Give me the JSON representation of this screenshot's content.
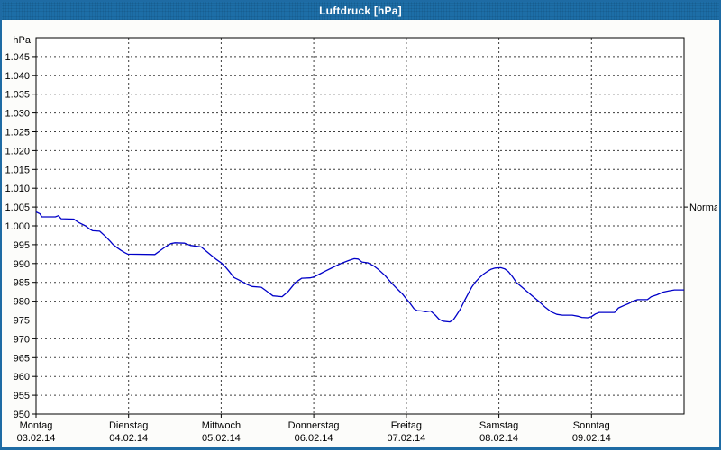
{
  "window": {
    "title": "Luftdruck [hPa]"
  },
  "chart_data": {
    "type": "line",
    "title": "Luftdruck [hPa]",
    "grid": true,
    "x_axis": {
      "unit": "hours_from_monday_00",
      "range_hours": [
        0,
        168
      ],
      "days": [
        {
          "name": "Montag",
          "date": "03.02.14"
        },
        {
          "name": "Dienstag",
          "date": "04.02.14"
        },
        {
          "name": "Mittwoch",
          "date": "05.02.14"
        },
        {
          "name": "Donnerstag",
          "date": "06.02.14"
        },
        {
          "name": "Freitag",
          "date": "07.02.14"
        },
        {
          "name": "Samstag",
          "date": "08.02.14"
        },
        {
          "name": "Sonntag",
          "date": "09.02.14"
        }
      ]
    },
    "y_axis": {
      "unit": "hPa",
      "min": 950,
      "max": 1050,
      "tick_step": 5,
      "labels": [
        "1.045",
        "1.040",
        "1.035",
        "1.030",
        "1.025",
        "1.020",
        "1.015",
        "1.010",
        "1.005",
        "1.000",
        "995",
        "990",
        "985",
        "980",
        "975",
        "970",
        "965",
        "960",
        "955",
        "950"
      ]
    },
    "annotations": [
      {
        "label": "Normal",
        "value": 1005
      }
    ],
    "series": [
      {
        "name": "Luftdruck",
        "color": "#0000c8",
        "points": [
          [
            0,
            1003.7
          ],
          [
            1,
            1003.2
          ],
          [
            1.5,
            1002.4
          ],
          [
            5,
            1002.4
          ],
          [
            5.8,
            1002.7
          ],
          [
            6.5,
            1001.9
          ],
          [
            9.8,
            1001.8
          ],
          [
            11,
            1000.9
          ],
          [
            12.8,
            1000.0
          ],
          [
            14,
            999.1
          ],
          [
            14.7,
            998.7
          ],
          [
            16.5,
            998.6
          ],
          [
            18,
            997.2
          ],
          [
            19.2,
            995.9
          ],
          [
            20,
            995.0
          ],
          [
            21,
            994.2
          ],
          [
            22,
            993.5
          ],
          [
            23,
            992.9
          ],
          [
            23.8,
            992.5
          ],
          [
            30.8,
            992.4
          ],
          [
            32,
            993.3
          ],
          [
            33.5,
            994.4
          ],
          [
            35,
            995.3
          ],
          [
            36,
            995.5
          ],
          [
            38.5,
            995.4
          ],
          [
            40,
            994.8
          ],
          [
            42.8,
            994.4
          ],
          [
            44,
            993.4
          ],
          [
            45.3,
            992.3
          ],
          [
            46.6,
            991.2
          ],
          [
            48,
            990.2
          ],
          [
            49,
            989.2
          ],
          [
            50,
            988.0
          ],
          [
            51.3,
            986.3
          ],
          [
            52.5,
            985.7
          ],
          [
            54.8,
            984.4
          ],
          [
            56,
            983.9
          ],
          [
            58.4,
            983.7
          ],
          [
            59.5,
            982.9
          ],
          [
            61.4,
            981.4
          ],
          [
            63.8,
            981.2
          ],
          [
            65.4,
            982.6
          ],
          [
            67.3,
            985.0
          ],
          [
            68.9,
            986.1
          ],
          [
            71,
            986.2
          ],
          [
            72,
            986.4
          ],
          [
            73.5,
            987.2
          ],
          [
            75,
            988.0
          ],
          [
            77,
            989.0
          ],
          [
            79,
            990.0
          ],
          [
            81,
            990.8
          ],
          [
            82.5,
            991.3
          ],
          [
            83.5,
            991.2
          ],
          [
            84.5,
            990.4
          ],
          [
            86,
            990.2
          ],
          [
            87.5,
            989.4
          ],
          [
            89,
            988.2
          ],
          [
            90.5,
            986.8
          ],
          [
            92,
            985.0
          ],
          [
            93.5,
            983.4
          ],
          [
            95,
            981.9
          ],
          [
            96,
            980.6
          ],
          [
            97,
            979.4
          ],
          [
            98,
            978.0
          ],
          [
            98.8,
            977.5
          ],
          [
            100,
            977.4
          ],
          [
            101,
            977.2
          ],
          [
            102.3,
            977.4
          ],
          [
            103.5,
            976.3
          ],
          [
            104.5,
            975.2
          ],
          [
            105.5,
            974.7
          ],
          [
            107.3,
            974.5
          ],
          [
            108.2,
            975.1
          ],
          [
            109,
            976.3
          ],
          [
            110,
            977.9
          ],
          [
            111,
            980.0
          ],
          [
            112,
            981.9
          ],
          [
            113,
            983.8
          ],
          [
            114,
            985.2
          ],
          [
            115,
            986.3
          ],
          [
            116,
            987.2
          ],
          [
            117,
            987.9
          ],
          [
            118,
            988.5
          ],
          [
            119,
            988.8
          ],
          [
            120.5,
            988.9
          ],
          [
            121.5,
            988.6
          ],
          [
            122.5,
            987.8
          ],
          [
            123.5,
            986.5
          ],
          [
            124.5,
            985.0
          ],
          [
            126,
            983.7
          ],
          [
            127.5,
            982.4
          ],
          [
            129,
            981.1
          ],
          [
            130.5,
            979.8
          ],
          [
            132,
            978.4
          ],
          [
            133.5,
            977.2
          ],
          [
            135,
            976.5
          ],
          [
            136.5,
            976.3
          ],
          [
            139,
            976.3
          ],
          [
            140.5,
            976.0
          ],
          [
            141.5,
            975.7
          ],
          [
            143,
            975.6
          ],
          [
            144,
            975.9
          ],
          [
            145,
            976.6
          ],
          [
            146,
            977.0
          ],
          [
            150,
            977.0
          ],
          [
            151,
            978.2
          ],
          [
            152.5,
            978.9
          ],
          [
            153.5,
            979.3
          ],
          [
            155,
            980.1
          ],
          [
            156,
            980.4
          ],
          [
            158.5,
            980.4
          ],
          [
            159.5,
            981.2
          ],
          [
            161,
            981.7
          ],
          [
            162.5,
            982.4
          ],
          [
            164,
            982.7
          ],
          [
            165.5,
            983.0
          ],
          [
            168,
            983.0
          ]
        ]
      }
    ]
  }
}
